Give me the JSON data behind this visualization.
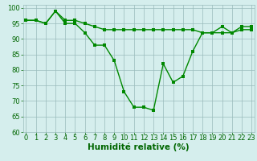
{
  "x": [
    0,
    1,
    2,
    3,
    4,
    5,
    6,
    7,
    8,
    9,
    10,
    11,
    12,
    13,
    14,
    15,
    16,
    17,
    18,
    19,
    20,
    21,
    22,
    23
  ],
  "line_upper": [
    96,
    96,
    95,
    99,
    96,
    96,
    95,
    94,
    93,
    93,
    93,
    93,
    93,
    93,
    93,
    93,
    93,
    93,
    92,
    92,
    92,
    92,
    93,
    93
  ],
  "line_lower": [
    96,
    96,
    95,
    99,
    95,
    95,
    92,
    88,
    88,
    83,
    73,
    68,
    68,
    67,
    82,
    76,
    78,
    86,
    92,
    92,
    94,
    92,
    94,
    94
  ],
  "line_color": "#008800",
  "bg_color": "#d5eeed",
  "grid_color": "#99bbbb",
  "xlabel": "Humidité relative (%)",
  "xlabel_color": "#006600",
  "xlabel_fontsize": 7.5,
  "tick_color": "#006600",
  "tick_fontsize": 6,
  "ylim": [
    60,
    101
  ],
  "yticks": [
    60,
    65,
    70,
    75,
    80,
    85,
    90,
    95,
    100
  ],
  "xlim": [
    -0.3,
    23.3
  ],
  "xticks": [
    0,
    1,
    2,
    3,
    4,
    5,
    6,
    7,
    8,
    9,
    10,
    11,
    12,
    13,
    14,
    15,
    16,
    17,
    18,
    19,
    20,
    21,
    22,
    23
  ]
}
